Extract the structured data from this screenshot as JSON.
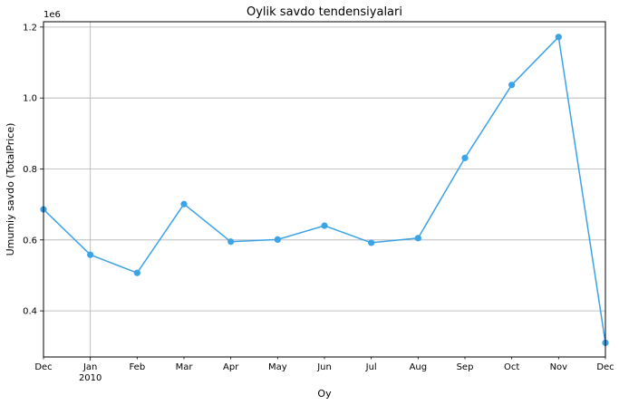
{
  "chart_data": {
    "type": "line",
    "title": "Oylik savdo tendensiyalari",
    "xlabel": "Oy",
    "ylabel": "Umumiy savdo (TotalPrice)",
    "y_offset_label": "1e6",
    "y_scale": 1000000,
    "x_tick_labels": [
      "Dec",
      "Jan\n2010",
      "Feb",
      "Mar",
      "Apr",
      "May",
      "Jun",
      "Jul",
      "Aug",
      "Sep",
      "Oct",
      "Nov",
      "Dec"
    ],
    "y_ticks": [
      0.4,
      0.6,
      0.8,
      1.0,
      1.2
    ],
    "y_tick_labels": [
      "0.4",
      "0.6",
      "0.8",
      "1.0",
      "1.2"
    ],
    "ylim": [
      0.27,
      1.215
    ],
    "grid": "horizontal lines plus one vertical line at Jan 2010",
    "series": [
      {
        "color": "#3ba3e6",
        "x": [
          "2009-12",
          "2010-01",
          "2010-02",
          "2010-03",
          "2010-04",
          "2010-05",
          "2010-06",
          "2010-07",
          "2010-08",
          "2010-09",
          "2010-10",
          "2010-11",
          "2010-12"
        ],
        "values": [
          686000,
          558000,
          507000,
          701000,
          595000,
          601000,
          640000,
          592000,
          605000,
          831000,
          1037000,
          1172000,
          310000
        ]
      }
    ]
  }
}
